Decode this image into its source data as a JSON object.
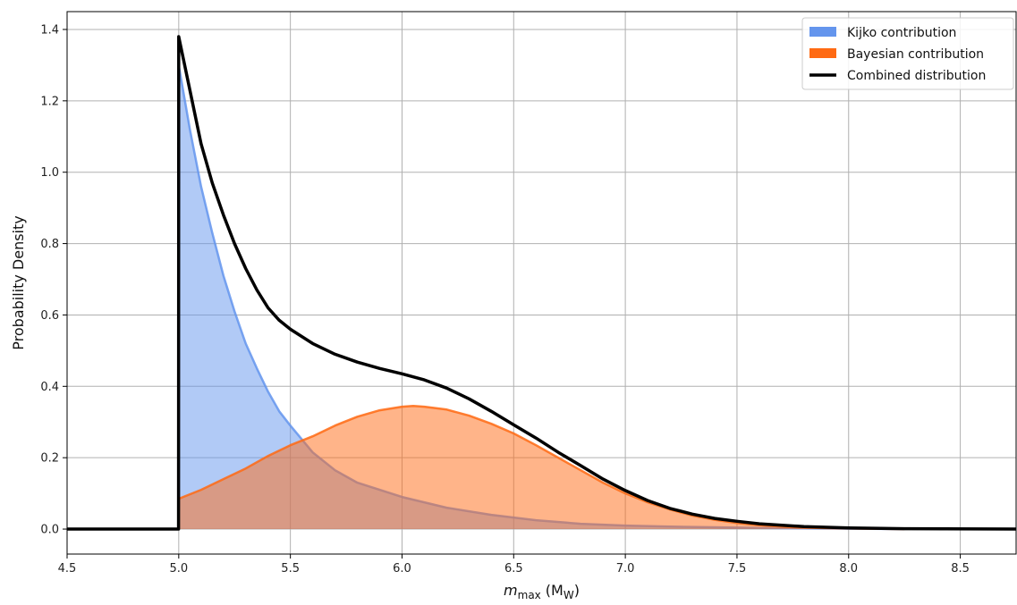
{
  "chart_data": {
    "type": "area",
    "title": "",
    "xlabel_main": "m",
    "xlabel_sub": "max",
    "xlabel_unit": "(M",
    "xlabel_unit_sub": "W",
    "xlabel_close": ")",
    "ylabel": "Probability Density",
    "xlim": [
      4.5,
      8.75
    ],
    "ylim": [
      -0.07,
      1.45
    ],
    "grid": true,
    "legend_position": "top-right",
    "xticks": [
      4.5,
      5.0,
      5.5,
      6.0,
      6.5,
      7.0,
      7.5,
      8.0,
      8.5
    ],
    "xtick_labels": [
      "4.5",
      "5.0",
      "5.5",
      "6.0",
      "6.5",
      "7.0",
      "7.5",
      "8.0",
      "8.5"
    ],
    "yticks": [
      0.0,
      0.2,
      0.4,
      0.6,
      0.8,
      1.0,
      1.2,
      1.4
    ],
    "ytick_labels": [
      "0.0",
      "0.2",
      "0.4",
      "0.6",
      "0.8",
      "1.0",
      "1.2",
      "1.4"
    ],
    "series": [
      {
        "name": "Kijko contribution",
        "kind": "fill",
        "color": "#6495ED",
        "x": [
          4.5,
          4.999,
          5.0,
          5.05,
          5.1,
          5.15,
          5.2,
          5.25,
          5.3,
          5.35,
          5.4,
          5.45,
          5.5,
          5.6,
          5.7,
          5.8,
          5.9,
          6.0,
          6.2,
          6.4,
          6.6,
          6.8,
          7.0,
          7.2,
          7.4,
          7.6,
          7.8,
          8.0,
          8.25
        ],
        "y": [
          0.0,
          0.0,
          1.3,
          1.12,
          0.96,
          0.83,
          0.71,
          0.61,
          0.52,
          0.45,
          0.385,
          0.33,
          0.29,
          0.215,
          0.165,
          0.13,
          0.11,
          0.09,
          0.06,
          0.04,
          0.025,
          0.015,
          0.01,
          0.007,
          0.005,
          0.003,
          0.002,
          0.001,
          0.0
        ]
      },
      {
        "name": "Bayesian contribution",
        "kind": "fill",
        "color": "#FF6A13",
        "x": [
          4.5,
          4.999,
          5.0,
          5.1,
          5.2,
          5.3,
          5.4,
          5.5,
          5.6,
          5.7,
          5.8,
          5.9,
          6.0,
          6.05,
          6.1,
          6.2,
          6.3,
          6.4,
          6.5,
          6.6,
          6.7,
          6.8,
          6.9,
          7.0,
          7.1,
          7.2,
          7.3,
          7.4,
          7.5,
          7.6,
          7.7,
          7.8,
          7.9,
          8.0,
          8.1,
          8.25
        ],
        "y": [
          0.0,
          0.0,
          0.085,
          0.11,
          0.14,
          0.17,
          0.205,
          0.235,
          0.26,
          0.29,
          0.315,
          0.333,
          0.343,
          0.345,
          0.343,
          0.335,
          0.318,
          0.295,
          0.268,
          0.235,
          0.2,
          0.165,
          0.13,
          0.1,
          0.075,
          0.055,
          0.038,
          0.026,
          0.017,
          0.011,
          0.007,
          0.004,
          0.0025,
          0.0015,
          0.001,
          0.0
        ]
      },
      {
        "name": "Combined distribution",
        "kind": "line",
        "color": "#000000",
        "x": [
          4.5,
          4.999,
          5.0,
          5.05,
          5.1,
          5.15,
          5.2,
          5.25,
          5.3,
          5.35,
          5.4,
          5.45,
          5.5,
          5.6,
          5.7,
          5.8,
          5.9,
          6.0,
          6.1,
          6.2,
          6.3,
          6.4,
          6.5,
          6.6,
          6.7,
          6.8,
          6.9,
          7.0,
          7.1,
          7.2,
          7.3,
          7.4,
          7.5,
          7.6,
          7.8,
          8.0,
          8.25,
          8.75
        ],
        "y": [
          0.0,
          0.0,
          1.38,
          1.23,
          1.08,
          0.97,
          0.88,
          0.8,
          0.73,
          0.67,
          0.62,
          0.585,
          0.56,
          0.52,
          0.49,
          0.468,
          0.45,
          0.435,
          0.418,
          0.395,
          0.365,
          0.33,
          0.292,
          0.255,
          0.215,
          0.178,
          0.14,
          0.108,
          0.08,
          0.058,
          0.042,
          0.03,
          0.022,
          0.015,
          0.007,
          0.003,
          0.001,
          0.0
        ]
      }
    ]
  }
}
